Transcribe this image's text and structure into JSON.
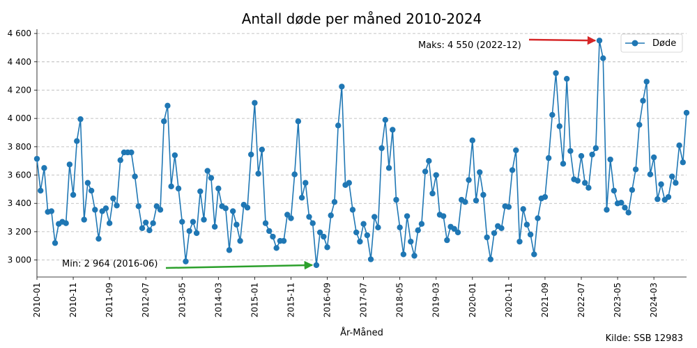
{
  "chart_data": {
    "type": "line",
    "title": "Antall døde per måned 2010-2024",
    "xlabel": "År-Måned",
    "ylabel": "",
    "ylim": [
      2880,
      4630
    ],
    "yticks": [
      3000,
      3200,
      3400,
      3600,
      3800,
      4000,
      4200,
      4400,
      4600
    ],
    "ytick_labels": [
      "3 000",
      "3 200",
      "3 400",
      "3 600",
      "3 800",
      "4 000",
      "4 200",
      "4 400",
      "4 600"
    ],
    "xticks": [
      "2010-01",
      "2010-11",
      "2011-09",
      "2012-07",
      "2013-05",
      "2014-03",
      "2015-01",
      "2015-11",
      "2016-09",
      "2017-07",
      "2018-05",
      "2019-03",
      "2020-01",
      "2020-11",
      "2021-09",
      "2022-07",
      "2023-05",
      "2024-03"
    ],
    "grid": "y-dashed",
    "legend": "top-right",
    "series": [
      {
        "name": "Døde",
        "color": "#1f77b4",
        "start": "2010-01",
        "values": [
          3715,
          3490,
          3650,
          3340,
          3345,
          3120,
          3255,
          3270,
          3260,
          3675,
          3460,
          3840,
          3995,
          3285,
          3545,
          3490,
          3355,
          3150,
          3345,
          3365,
          3260,
          3435,
          3385,
          3705,
          3760,
          3760,
          3760,
          3590,
          3380,
          3225,
          3265,
          3210,
          3260,
          3380,
          3355,
          3980,
          4090,
          3520,
          3740,
          3505,
          3270,
          2990,
          3205,
          3270,
          3190,
          3485,
          3285,
          3630,
          3580,
          3235,
          3505,
          3380,
          3365,
          3070,
          3345,
          3250,
          3135,
          3390,
          3370,
          3745,
          4110,
          3610,
          3780,
          3260,
          3205,
          3165,
          3085,
          3135,
          3135,
          3320,
          3295,
          3605,
          3980,
          3440,
          3545,
          3305,
          3260,
          2964,
          3195,
          3165,
          3090,
          3315,
          3410,
          3950,
          4225,
          3530,
          3545,
          3355,
          3195,
          3130,
          3255,
          3175,
          3005,
          3305,
          3230,
          3790,
          3990,
          3650,
          3920,
          3425,
          3230,
          3040,
          3310,
          3130,
          3030,
          3210,
          3255,
          3625,
          3700,
          3470,
          3600,
          3320,
          3310,
          3140,
          3235,
          3220,
          3195,
          3425,
          3410,
          3565,
          3845,
          3420,
          3620,
          3460,
          3160,
          3005,
          3190,
          3240,
          3225,
          3380,
          3375,
          3635,
          3775,
          3130,
          3360,
          3250,
          3180,
          3040,
          3295,
          3435,
          3445,
          3720,
          4025,
          4320,
          3945,
          3680,
          4280,
          3770,
          3570,
          3560,
          3735,
          3545,
          3510,
          3745,
          3790,
          4550,
          4425,
          3355,
          3710,
          3490,
          3400,
          3405,
          3370,
          3335,
          3495,
          3640,
          3955,
          4125,
          4260,
          3605,
          3725,
          3430,
          3535,
          3425,
          3445,
          3590,
          3545,
          3810,
          3690,
          4040
        ]
      }
    ],
    "annotations": [
      {
        "text": "Maks: 4 550 (2022-12)",
        "date": "2022-12",
        "value": 4550,
        "arrow_color": "#d62728"
      },
      {
        "text": "Min: 2 964 (2016-06)",
        "date": "2016-06",
        "value": 2964,
        "arrow_color": "#2ca02c"
      }
    ],
    "source": "Kilde: SSB 12983"
  }
}
